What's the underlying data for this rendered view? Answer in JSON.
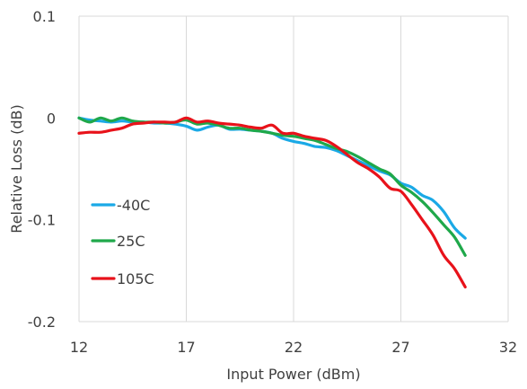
{
  "chart_data": {
    "type": "line",
    "title": "",
    "xlabel": "Input Power (dBm)",
    "ylabel": "Relative Loss (dB)",
    "xlim": [
      12,
      32
    ],
    "ylim": [
      -0.2,
      0.1
    ],
    "x_ticks": [
      "12",
      "17",
      "22",
      "27",
      "32"
    ],
    "y_ticks": [
      "0.1",
      "0",
      "-0.1",
      "-0.2"
    ],
    "grid": "vertical",
    "legend_position": "lower-left",
    "series": [
      {
        "name": "-40C",
        "color": "#1aa9e6",
        "x": [
          12,
          12.5,
          13,
          13.5,
          14,
          14.5,
          15,
          15.5,
          16,
          16.5,
          17,
          17.5,
          18,
          18.5,
          19,
          19.5,
          20,
          20.5,
          21,
          21.5,
          22,
          22.5,
          23,
          23.5,
          24,
          24.5,
          25,
          25.5,
          26,
          26.5,
          27,
          27.5,
          28,
          28.5,
          29,
          29.5,
          30
        ],
        "y": [
          0,
          -0.002,
          -0.003,
          -0.004,
          -0.003,
          -0.004,
          -0.004,
          -0.005,
          -0.005,
          -0.006,
          -0.008,
          -0.012,
          -0.009,
          -0.007,
          -0.011,
          -0.011,
          -0.012,
          -0.013,
          -0.015,
          -0.02,
          -0.023,
          -0.025,
          -0.028,
          -0.029,
          -0.032,
          -0.037,
          -0.042,
          -0.047,
          -0.052,
          -0.056,
          -0.064,
          -0.068,
          -0.076,
          -0.081,
          -0.092,
          -0.108,
          -0.118
        ]
      },
      {
        "name": "25C",
        "color": "#1fa84a",
        "x": [
          12,
          12.5,
          13,
          13.5,
          14,
          14.5,
          15,
          15.5,
          16,
          16.5,
          17,
          17.5,
          18,
          18.5,
          19,
          19.5,
          20,
          20.5,
          21,
          21.5,
          22,
          22.5,
          23,
          23.5,
          24,
          24.5,
          25,
          25.5,
          26,
          26.5,
          27,
          27.5,
          28,
          28.5,
          29,
          29.5,
          30
        ],
        "y": [
          0,
          -0.004,
          0,
          -0.003,
          0,
          -0.003,
          -0.004,
          -0.004,
          -0.005,
          -0.004,
          -0.002,
          -0.006,
          -0.005,
          -0.007,
          -0.01,
          -0.01,
          -0.012,
          -0.013,
          -0.015,
          -0.017,
          -0.018,
          -0.02,
          -0.022,
          -0.026,
          -0.03,
          -0.033,
          -0.038,
          -0.044,
          -0.05,
          -0.055,
          -0.066,
          -0.073,
          -0.082,
          -0.093,
          -0.105,
          -0.117,
          -0.135
        ]
      },
      {
        "name": "105C",
        "color": "#e8121a",
        "x": [
          12,
          12.5,
          13,
          13.5,
          14,
          14.5,
          15,
          15.5,
          16,
          16.5,
          17,
          17.5,
          18,
          18.5,
          19,
          19.5,
          20,
          20.5,
          21,
          21.5,
          22,
          22.5,
          23,
          23.5,
          24,
          24.5,
          25,
          25.5,
          26,
          26.5,
          27,
          27.5,
          28,
          28.5,
          29,
          29.5,
          30
        ],
        "y": [
          -0.015,
          -0.014,
          -0.014,
          -0.012,
          -0.01,
          -0.006,
          -0.005,
          -0.004,
          -0.004,
          -0.004,
          0,
          -0.004,
          -0.003,
          -0.005,
          -0.006,
          -0.007,
          -0.009,
          -0.01,
          -0.007,
          -0.015,
          -0.015,
          -0.018,
          -0.02,
          -0.022,
          -0.028,
          -0.036,
          -0.044,
          -0.05,
          -0.058,
          -0.069,
          -0.072,
          -0.085,
          -0.1,
          -0.115,
          -0.135,
          -0.148,
          -0.166
        ]
      }
    ]
  }
}
